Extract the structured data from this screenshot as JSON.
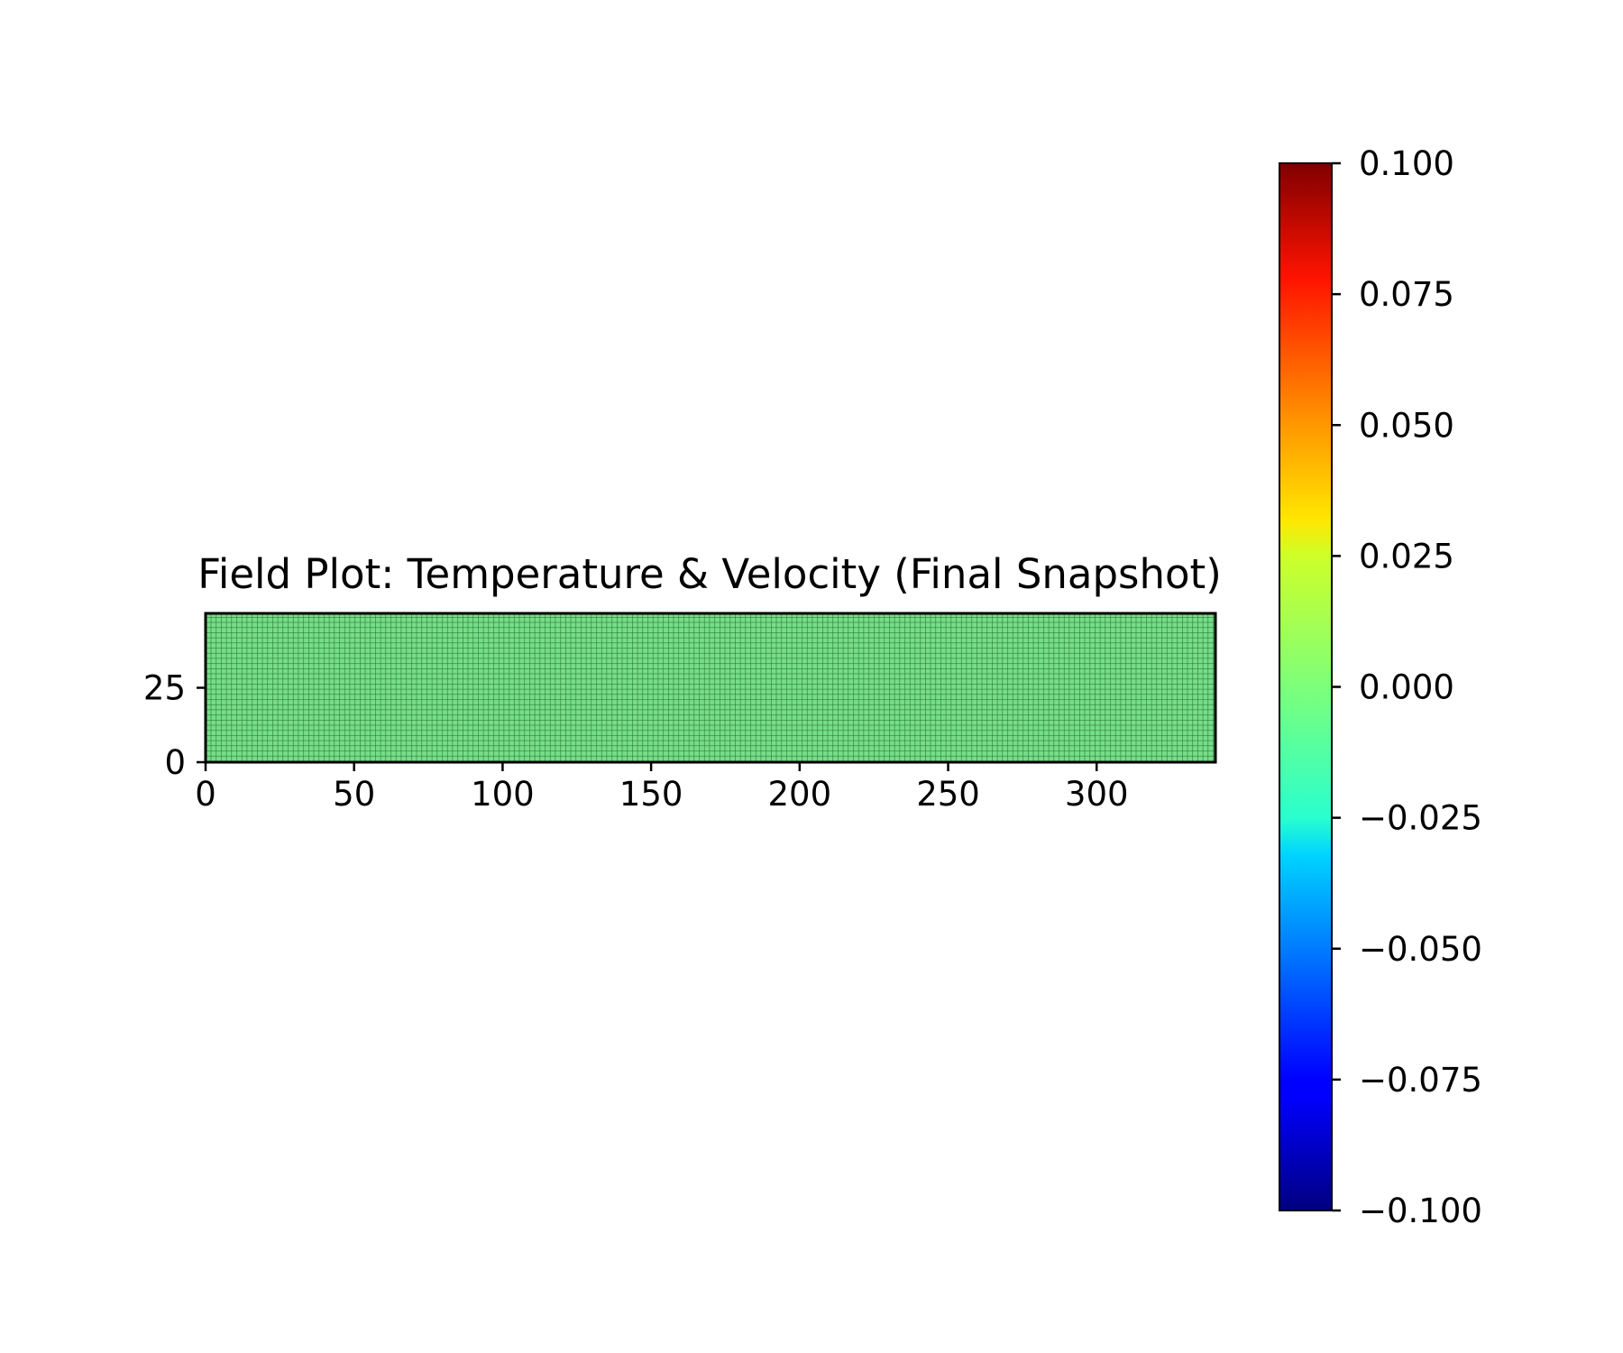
{
  "chart_data": {
    "type": "heatmap",
    "title": "Field Plot: Temperature & Velocity (Final Snapshot)",
    "xlabel": "",
    "ylabel": "",
    "xlim": [
      0,
      340
    ],
    "ylim": [
      0,
      50
    ],
    "x_ticks": [
      0,
      50,
      100,
      150,
      200,
      250,
      300
    ],
    "y_ticks": [
      0,
      25
    ],
    "field_value": 0.0,
    "field_fill_color": "#77dd88",
    "grid_line_color": "#2a7a3a",
    "grid": true,
    "colormap": "jet",
    "colorbar": {
      "range": [
        -0.1,
        0.1
      ],
      "ticks": [
        "0.100",
        "0.075",
        "0.050",
        "0.025",
        "0.000",
        "−0.025",
        "−0.050",
        "−0.075",
        "−0.100"
      ],
      "tick_values": [
        0.1,
        0.075,
        0.05,
        0.025,
        0.0,
        -0.025,
        -0.05,
        -0.075,
        -0.1
      ],
      "placement": "right"
    }
  }
}
